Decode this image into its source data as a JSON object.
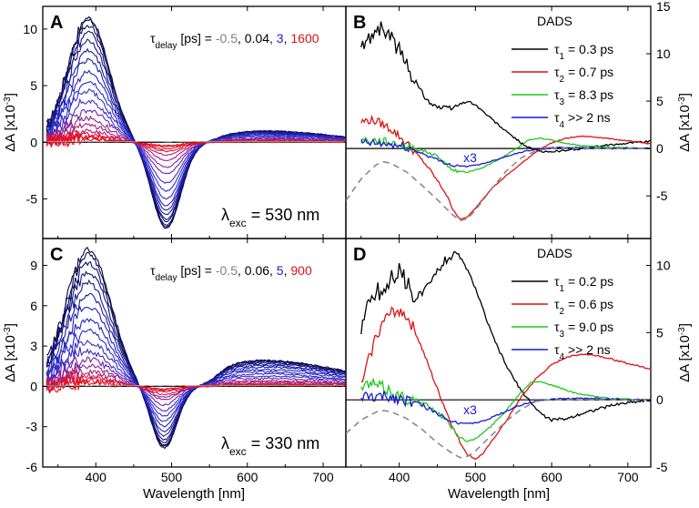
{
  "figure": {
    "xlabel": "Wavelength [nm]",
    "xticks": [
      "400",
      "500",
      "600",
      "700"
    ]
  },
  "chart_data": [
    {
      "panel": "A",
      "type": "line",
      "title": "",
      "xlabel": "Wavelength [nm]",
      "ylabel": "ΔA [x10⁻³]",
      "xlim": [
        330,
        730
      ],
      "ylim": [
        -8.5,
        12
      ],
      "yticks": [
        -5,
        0,
        5,
        10
      ],
      "annotation": {
        "prefix": "λ",
        "sub": "exc",
        "text": " = 530 nm"
      },
      "delays": {
        "label": "τ",
        "sub": "delay",
        "unit": " [ps] = ",
        "values": [
          {
            "text": "-0.5",
            "color": "#808080"
          },
          {
            "text": "0.04",
            "color": "#000000"
          },
          {
            "text": "3",
            "color": "#1a1ad6"
          },
          {
            "text": "1600",
            "color": "#e01010"
          }
        ]
      },
      "series_kind": "transient_spectra",
      "peak_amplitudes": [
        11.0,
        10.8,
        10.3,
        9.7,
        9.0,
        8.1,
        7.2,
        6.3,
        5.4,
        4.5,
        3.6,
        2.8,
        2.1,
        1.5,
        1.0,
        0.7,
        0.5,
        0.4,
        0.3
      ],
      "bleach_amplitudes": [
        -7.6,
        -7.5,
        -7.3,
        -7.0,
        -6.8,
        -6.4,
        -6.0,
        -5.6,
        -5.0,
        -4.3,
        -3.6,
        -2.8,
        -2.2,
        -1.6,
        -1.1,
        -0.8,
        -0.6,
        -0.4,
        -0.3
      ],
      "colors": [
        "#0a0a3a",
        "#0d0d50",
        "#101064",
        "#141478",
        "#18188c",
        "#1c1ca0",
        "#2020b0",
        "#2424c0",
        "#2a2ac8",
        "#3030d0",
        "#4a2ac0",
        "#6a26a8",
        "#8a2290",
        "#a81e78",
        "#c01a60",
        "#d41648",
        "#e01232",
        "#e80e20",
        "#ee0a10"
      ],
      "features": {
        "pos_center": 390,
        "pos_width": 38,
        "neg_center": 493,
        "neg_width": 27,
        "red_center": 625,
        "red_width": 60,
        "red_ratio": 0.13,
        "zero_cross": 450
      }
    },
    {
      "panel": "B",
      "type": "line",
      "title": "DADS",
      "xlabel": "Wavelength [nm]",
      "ylabel": "ΔA [x10⁻³]",
      "xlim": [
        330,
        730
      ],
      "ylim": [
        -9.5,
        15
      ],
      "yticks": [
        -5,
        0,
        5,
        10,
        15
      ],
      "scale_note": "x3",
      "series": [
        {
          "name": "τ1 = 0.3 ps",
          "sub": "1",
          "rest": " = 0.3 ps",
          "color": "#000000",
          "x": [
            350,
            360,
            370,
            380,
            390,
            400,
            410,
            420,
            430,
            440,
            450,
            460,
            470,
            480,
            490,
            500,
            510,
            520,
            530,
            540,
            550,
            560,
            570,
            580,
            590,
            600,
            620,
            640,
            660,
            680,
            700,
            720,
            730
          ],
          "values": [
            10.5,
            11.5,
            12.8,
            12.5,
            11.6,
            10.3,
            8.8,
            7.2,
            5.9,
            4.9,
            4.4,
            4.2,
            4.3,
            4.7,
            5.0,
            4.6,
            3.9,
            3.2,
            2.5,
            1.8,
            1.2,
            0.6,
            0.1,
            -0.2,
            -0.4,
            -0.3,
            -0.2,
            0.0,
            0.2,
            0.4,
            0.6,
            0.7,
            0.8
          ]
        },
        {
          "name": "τ2 = 0.7 ps",
          "sub": "2",
          "rest": " = 0.7 ps",
          "color": "#e01010",
          "x": [
            350,
            360,
            370,
            380,
            390,
            400,
            410,
            420,
            440,
            460,
            470,
            480,
            490,
            500,
            510,
            520,
            540,
            560,
            580,
            600,
            620,
            640,
            660,
            680,
            700,
            720,
            730
          ],
          "values": [
            2.8,
            3.0,
            2.9,
            2.5,
            2.0,
            1.3,
            0.5,
            -0.3,
            -2.2,
            -4.6,
            -6.3,
            -7.5,
            -7.2,
            -6.3,
            -5.3,
            -4.3,
            -2.9,
            -1.6,
            -0.3,
            0.6,
            1.1,
            1.3,
            1.2,
            1.0,
            0.8,
            0.6,
            0.5
          ]
        },
        {
          "name": "τ3 = 8.3 ps",
          "sub": "3",
          "rest": " = 8.3 ps",
          "color": "#1ec81e",
          "x": [
            350,
            370,
            390,
            410,
            430,
            450,
            470,
            490,
            510,
            530,
            550,
            570,
            585,
            600,
            620,
            640,
            660,
            680,
            700,
            730
          ],
          "values": [
            0.9,
            0.8,
            0.6,
            0.2,
            -0.2,
            -0.8,
            -2.3,
            -2.5,
            -2.0,
            -1.2,
            -0.2,
            0.9,
            1.1,
            0.9,
            0.5,
            0.3,
            0.2,
            0.1,
            0.1,
            0.0
          ]
        },
        {
          "name": "τ4 >> 2 ns",
          "sub": "4",
          "rest": " >> 2 ns",
          "color": "#1a1ad6",
          "x": [
            350,
            370,
            390,
            410,
            430,
            450,
            470,
            490,
            510,
            530,
            550,
            570,
            590,
            610,
            640,
            680,
            730
          ],
          "values": [
            0.6,
            0.5,
            0.4,
            0.1,
            -0.5,
            -1.2,
            -1.8,
            -1.9,
            -1.6,
            -1.1,
            -0.6,
            -0.2,
            0.0,
            0.1,
            0.1,
            0.0,
            0.0
          ]
        },
        {
          "name": "steady-state",
          "dashed": true,
          "color": "#8a8a8a",
          "x": [
            330,
            350,
            370,
            380,
            390,
            410,
            430,
            450,
            470,
            480,
            490,
            500,
            520,
            540,
            560,
            580,
            600,
            640,
            680,
            730
          ],
          "values": [
            -5.5,
            -3.2,
            -1.7,
            -1.4,
            -1.6,
            -2.5,
            -3.9,
            -5.4,
            -7.0,
            -7.6,
            -7.4,
            -6.5,
            -4.4,
            -2.4,
            -1.0,
            -0.2,
            0.0,
            0.0,
            0.0,
            0.0
          ]
        }
      ]
    },
    {
      "panel": "C",
      "type": "line",
      "title": "",
      "xlabel": "Wavelength [nm]",
      "ylabel": "ΔA [x10⁻³]",
      "xlim": [
        330,
        730
      ],
      "ylim": [
        -6,
        11
      ],
      "yticks": [
        -6,
        -3,
        0,
        3,
        6,
        9
      ],
      "annotation": {
        "prefix": "λ",
        "sub": "exc",
        "text": " = 330 nm"
      },
      "delays": {
        "label": "τ",
        "sub": "delay",
        "unit": " [ps] = ",
        "values": [
          {
            "text": "-0.5",
            "color": "#808080"
          },
          {
            "text": "0.06",
            "color": "#000000"
          },
          {
            "text": "5",
            "color": "#1a1ad6"
          },
          {
            "text": "900",
            "color": "#e01010"
          }
        ]
      },
      "series_kind": "transient_spectra",
      "peak_amplitudes": [
        10.2,
        9.8,
        9.2,
        8.5,
        7.7,
        6.8,
        5.9,
        5.0,
        4.1,
        3.3,
        2.6,
        2.0,
        1.5,
        1.1,
        0.8,
        0.6,
        0.4,
        0.3
      ],
      "bleach_amplitudes": [
        -4.6,
        -4.5,
        -4.4,
        -4.2,
        -4.0,
        -3.7,
        -3.4,
        -3.0,
        -2.6,
        -2.2,
        -1.8,
        -1.4,
        -1.0,
        -0.8,
        -0.6,
        -0.4,
        -0.3,
        -0.2
      ],
      "colors": [
        "#0a0a3a",
        "#0d0d50",
        "#101064",
        "#141478",
        "#18188c",
        "#1c1ca0",
        "#2020b0",
        "#2424c0",
        "#2a2ac8",
        "#3030d0",
        "#4a2ac0",
        "#6a26a8",
        "#8a2290",
        "#a81e78",
        "#c01a60",
        "#d41648",
        "#e01232",
        "#ee0a10"
      ],
      "features": {
        "pos_center": 390,
        "pos_width": 42,
        "neg_center": 490,
        "neg_width": 24,
        "red_center": 620,
        "red_width": 75,
        "red_ratio": 0.42,
        "zero_cross": 450
      }
    },
    {
      "panel": "D",
      "type": "line",
      "title": "DADS",
      "xlabel": "Wavelength [nm]",
      "ylabel": "ΔA [x10⁻³]",
      "xlim": [
        330,
        730
      ],
      "ylim": [
        -5,
        12
      ],
      "yticks": [
        -5,
        0,
        5,
        10
      ],
      "scale_note": "x3",
      "series": [
        {
          "name": "τ1 = 0.2 ps",
          "sub": "1",
          "rest": " = 0.2 ps",
          "color": "#000000",
          "x": [
            350,
            360,
            370,
            380,
            390,
            400,
            410,
            420,
            430,
            440,
            450,
            460,
            470,
            480,
            490,
            500,
            510,
            520,
            530,
            540,
            550,
            560,
            570,
            580,
            590,
            600,
            620,
            640,
            660,
            680,
            700,
            730
          ],
          "values": [
            5.5,
            7.0,
            8.2,
            8.0,
            9.3,
            9.6,
            8.4,
            7.6,
            7.9,
            8.6,
            9.6,
            10.4,
            10.8,
            10.6,
            9.6,
            8.3,
            6.7,
            5.1,
            3.8,
            2.6,
            1.6,
            0.7,
            0.0,
            -0.7,
            -1.2,
            -1.5,
            -1.4,
            -1.0,
            -0.7,
            -0.4,
            -0.2,
            0.0
          ]
        },
        {
          "name": "τ2 = 0.6 ps",
          "sub": "2",
          "rest": " = 0.6 ps",
          "color": "#e01010",
          "x": [
            350,
            360,
            370,
            380,
            390,
            400,
            410,
            420,
            430,
            440,
            450,
            460,
            470,
            480,
            490,
            500,
            510,
            520,
            540,
            560,
            580,
            600,
            620,
            640,
            660,
            680,
            700,
            730
          ],
          "values": [
            1.0,
            3.0,
            4.8,
            5.9,
            6.5,
            6.7,
            6.2,
            5.2,
            3.8,
            2.3,
            0.8,
            -0.6,
            -2.0,
            -3.2,
            -4.1,
            -4.4,
            -4.0,
            -3.2,
            -1.6,
            0.2,
            1.6,
            2.6,
            3.2,
            3.4,
            3.3,
            3.0,
            2.7,
            2.3
          ]
        },
        {
          "name": "τ3 = 9.0 ps",
          "sub": "3",
          "rest": " = 9.0 ps",
          "color": "#1ec81e",
          "x": [
            350,
            360,
            370,
            380,
            390,
            400,
            410,
            420,
            440,
            460,
            480,
            490,
            500,
            520,
            540,
            560,
            575,
            590,
            610,
            630,
            650,
            680,
            710,
            730
          ],
          "values": [
            0.8,
            1.2,
            1.1,
            0.9,
            0.6,
            0.3,
            0.1,
            0.0,
            -0.5,
            -1.4,
            -2.8,
            -3.1,
            -2.9,
            -2.0,
            -0.8,
            0.6,
            1.4,
            1.3,
            0.9,
            0.5,
            0.3,
            0.1,
            0.0,
            0.0
          ]
        },
        {
          "name": "τ4 >> 2 ns",
          "sub": "4",
          "rest": " >> 2 ns",
          "color": "#1a1ad6",
          "x": [
            350,
            370,
            390,
            410,
            430,
            450,
            470,
            490,
            510,
            530,
            550,
            570,
            590,
            620,
            660,
            700,
            730
          ],
          "values": [
            0.2,
            0.2,
            0.2,
            0.0,
            -0.4,
            -1.0,
            -1.6,
            -1.8,
            -1.6,
            -1.1,
            -0.6,
            -0.2,
            0.0,
            0.1,
            0.1,
            0.0,
            0.0
          ]
        },
        {
          "name": "steady-state",
          "dashed": true,
          "color": "#8a8a8a",
          "x": [
            330,
            350,
            370,
            380,
            390,
            410,
            430,
            450,
            470,
            480,
            490,
            500,
            520,
            540,
            560,
            580,
            600,
            640,
            680,
            730
          ],
          "values": [
            -2.5,
            -1.5,
            -0.9,
            -0.8,
            -0.9,
            -1.4,
            -2.2,
            -3.2,
            -4.0,
            -4.3,
            -4.2,
            -3.8,
            -2.7,
            -1.6,
            -0.7,
            -0.1,
            0.0,
            0.0,
            0.0,
            0.0
          ]
        }
      ]
    }
  ]
}
